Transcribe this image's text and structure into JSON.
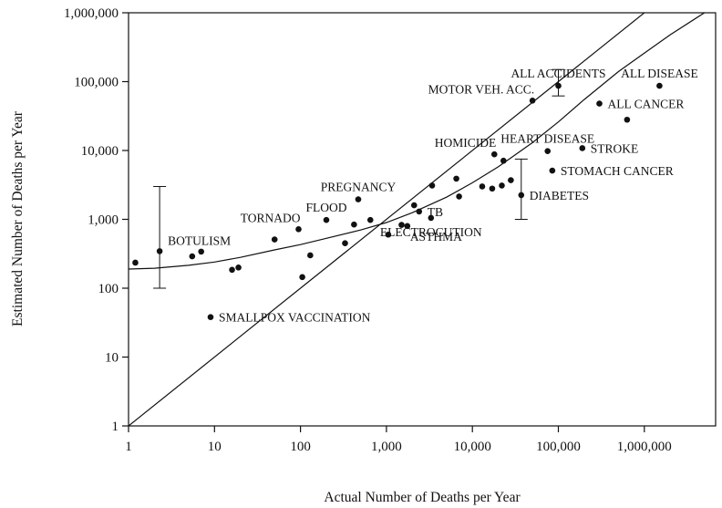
{
  "chart_data": {
    "type": "scatter",
    "xlabel": "Actual Number of Deaths per Year",
    "ylabel": "Estimated Number of Deaths per Year",
    "scale": "log-log",
    "xlim": [
      1,
      7000000
    ],
    "ylim": [
      1,
      1000000
    ],
    "grid": false,
    "x_ticks": [
      {
        "value": 1,
        "label": "1"
      },
      {
        "value": 10,
        "label": "10"
      },
      {
        "value": 100,
        "label": "100"
      },
      {
        "value": 1000,
        "label": "1,000"
      },
      {
        "value": 10000,
        "label": "10,000"
      },
      {
        "value": 100000,
        "label": "100,000"
      },
      {
        "value": 1000000,
        "label": "1,000,000"
      }
    ],
    "y_ticks": [
      {
        "value": 1,
        "label": "1"
      },
      {
        "value": 10,
        "label": "10"
      },
      {
        "value": 100,
        "label": "100"
      },
      {
        "value": 1000,
        "label": "1,000"
      },
      {
        "value": 10000,
        "label": "10,000"
      },
      {
        "value": 100000,
        "label": "100,000"
      },
      {
        "value": 1000000,
        "label": "1,000,000"
      }
    ],
    "points": [
      {
        "x": 1.2,
        "y": 235,
        "label": ""
      },
      {
        "x": 2.3,
        "y": 345,
        "label": "BOTULISM",
        "label_anchor": "right-up"
      },
      {
        "x": 5.5,
        "y": 290,
        "label": ""
      },
      {
        "x": 7,
        "y": 340,
        "label": ""
      },
      {
        "x": 9,
        "y": 38,
        "label": "SMALLPOX VACCINATION",
        "label_anchor": "right"
      },
      {
        "x": 16,
        "y": 185,
        "label": ""
      },
      {
        "x": 19,
        "y": 200,
        "label": ""
      },
      {
        "x": 50,
        "y": 510,
        "label": ""
      },
      {
        "x": 95,
        "y": 720,
        "label": "TORNADO",
        "label_anchor": "left-up"
      },
      {
        "x": 105,
        "y": 145,
        "label": ""
      },
      {
        "x": 130,
        "y": 300,
        "label": ""
      },
      {
        "x": 200,
        "y": 980,
        "label": "FLOOD",
        "label_anchor": "up"
      },
      {
        "x": 330,
        "y": 450,
        "label": ""
      },
      {
        "x": 420,
        "y": 840,
        "label": ""
      },
      {
        "x": 470,
        "y": 1950,
        "label": "PREGNANCY",
        "label_anchor": "up"
      },
      {
        "x": 650,
        "y": 980,
        "label": ""
      },
      {
        "x": 1050,
        "y": 600,
        "label": ""
      },
      {
        "x": 1500,
        "y": 830,
        "label": ""
      },
      {
        "x": 1750,
        "y": 800,
        "label": "ASTHMA",
        "label_anchor": "right-down"
      },
      {
        "x": 2100,
        "y": 1600,
        "label": ""
      },
      {
        "x": 2400,
        "y": 1300,
        "label": "TB",
        "label_anchor": "right"
      },
      {
        "x": 3300,
        "y": 1050,
        "label": "ELECTROCUTION",
        "label_anchor": "down"
      },
      {
        "x": 3400,
        "y": 3100,
        "label": ""
      },
      {
        "x": 6500,
        "y": 3900,
        "label": ""
      },
      {
        "x": 7000,
        "y": 2150,
        "label": ""
      },
      {
        "x": 13000,
        "y": 3000,
        "label": ""
      },
      {
        "x": 17000,
        "y": 2800,
        "label": ""
      },
      {
        "x": 18000,
        "y": 8800,
        "label": "HOMICIDE",
        "label_anchor": "left-up"
      },
      {
        "x": 22000,
        "y": 3100,
        "label": ""
      },
      {
        "x": 23000,
        "y": 7100,
        "label": ""
      },
      {
        "x": 28000,
        "y": 3700,
        "label": ""
      },
      {
        "x": 37000,
        "y": 2250,
        "label": "DIABETES",
        "label_anchor": "right"
      },
      {
        "x": 50000,
        "y": 53000,
        "label": "MOTOR VEH. ACC.",
        "label_anchor": "left-up"
      },
      {
        "x": 75000,
        "y": 9800,
        "label": "HEART DISEASE",
        "label_anchor": "up"
      },
      {
        "x": 85000,
        "y": 5100,
        "label": "STOMACH CANCER",
        "label_anchor": "right"
      },
      {
        "x": 100000,
        "y": 87000,
        "label": "ALL ACCIDENTS",
        "label_anchor": "up"
      },
      {
        "x": 190000,
        "y": 10800,
        "label": "STROKE",
        "label_anchor": "right"
      },
      {
        "x": 300000,
        "y": 48000,
        "label": "ALL CANCER",
        "label_anchor": "right"
      },
      {
        "x": 630000,
        "y": 28000,
        "label": ""
      },
      {
        "x": 1500000,
        "y": 87000,
        "label": "ALL DISEASE",
        "label_anchor": "up"
      }
    ],
    "error_bars": [
      {
        "x": 2.3,
        "low": 100,
        "high": 3000
      },
      {
        "x": 37000,
        "low": 1000,
        "high": 7500
      },
      {
        "x": 100000,
        "low": 62000,
        "high": 150000
      }
    ],
    "reference_line": {
      "from": [
        1,
        1
      ],
      "to": [
        7000000,
        7000000
      ]
    },
    "fitted_curve": [
      [
        1,
        190
      ],
      [
        2,
        195
      ],
      [
        5,
        215
      ],
      [
        10,
        240
      ],
      [
        20,
        280
      ],
      [
        50,
        360
      ],
      [
        100,
        430
      ],
      [
        200,
        530
      ],
      [
        500,
        700
      ],
      [
        1000,
        900
      ],
      [
        2000,
        1250
      ],
      [
        5000,
        2100
      ],
      [
        10000,
        3400
      ],
      [
        20000,
        5800
      ],
      [
        50000,
        13000
      ],
      [
        100000,
        26000
      ],
      [
        200000,
        55000
      ],
      [
        500000,
        140000
      ],
      [
        1000000,
        260000
      ],
      [
        2000000,
        480000
      ],
      [
        5000000,
        1000000
      ],
      [
        7000000,
        1400000
      ]
    ]
  }
}
